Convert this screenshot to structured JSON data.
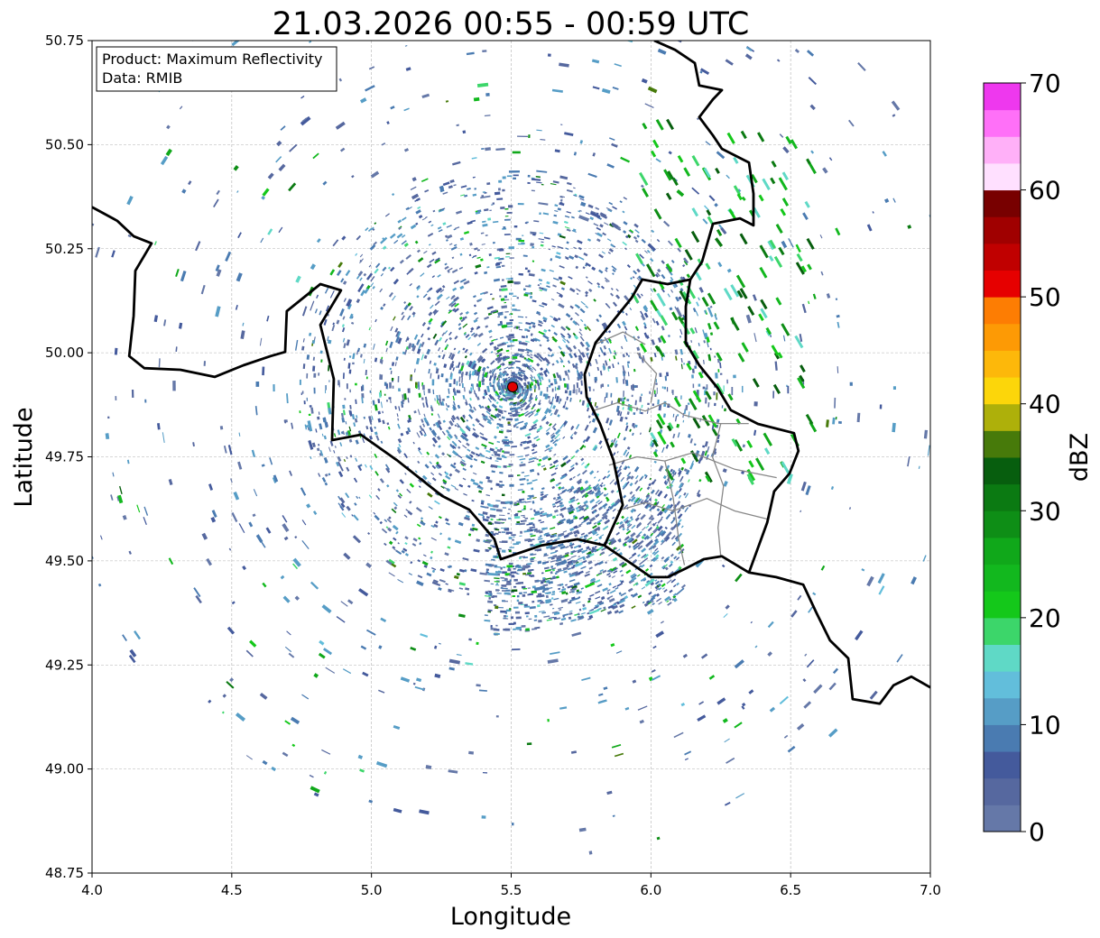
{
  "chart_data": {
    "type": "map",
    "title": "21.03.2026 00:55 - 00:59 UTC",
    "xlabel": "Longitude",
    "ylabel": "Latitude",
    "xlim": [
      4.0,
      7.0
    ],
    "ylim": [
      48.75,
      50.75
    ],
    "xticks": [
      4.0,
      4.5,
      5.0,
      5.5,
      6.0,
      6.5,
      7.0
    ],
    "xtick_labels": [
      "4.0",
      "4.5",
      "5.0",
      "5.5",
      "6.0",
      "6.5",
      "7.0"
    ],
    "yticks": [
      48.75,
      49.0,
      49.25,
      49.5,
      49.75,
      50.0,
      50.25,
      50.5,
      50.75
    ],
    "ytick_labels": [
      "48.75",
      "49.00",
      "49.25",
      "49.50",
      "49.75",
      "50.00",
      "50.25",
      "50.50",
      "50.75"
    ],
    "grid": true,
    "info_box": {
      "product": "Product: Maximum Reflectivity",
      "source": "Data: RMIB"
    },
    "radar_site": {
      "lon": 5.505,
      "lat": 49.918,
      "color": "#e00000"
    },
    "colorbar": {
      "label": "dBZ",
      "range": [
        0,
        70
      ],
      "step": 2.5,
      "ticks": [
        0,
        10,
        20,
        30,
        40,
        50,
        60,
        70
      ],
      "tick_labels": [
        "0",
        "10",
        "20",
        "30",
        "40",
        "50",
        "60",
        "70"
      ],
      "colors": [
        "#6578a8",
        "#56689f",
        "#445a9c",
        "#4a7bb1",
        "#569dc6",
        "#62bedb",
        "#5fd9c6",
        "#3cd66a",
        "#14c81a",
        "#12b81e",
        "#10a81a",
        "#0e8e16",
        "#0b7a12",
        "#075e0e",
        "#477a0a",
        "#aeb00a",
        "#fcd60a",
        "#fdb80a",
        "#fd9a05",
        "#fd7d03",
        "#e60000",
        "#c00000",
        "#a00000",
        "#780000",
        "#ffe0ff",
        "#ffb0f8",
        "#ff70f8",
        "#ee38ee"
      ]
    },
    "borders": {
      "national": [
        [
          [
            4.0,
            50.35
          ],
          [
            4.09,
            50.317
          ],
          [
            4.149,
            50.28
          ],
          [
            4.213,
            50.263
          ],
          [
            4.155,
            50.197
          ],
          [
            4.149,
            50.089
          ],
          [
            4.133,
            49.992
          ],
          [
            4.187,
            49.963
          ],
          [
            4.316,
            49.959
          ],
          [
            4.439,
            49.942
          ],
          [
            4.542,
            49.97
          ],
          [
            4.639,
            49.992
          ],
          [
            4.691,
            50.002
          ],
          [
            4.697,
            50.1
          ],
          [
            4.817,
            50.165
          ],
          [
            4.891,
            50.15
          ],
          [
            4.817,
            50.067
          ],
          [
            4.865,
            49.937
          ],
          [
            4.859,
            49.79
          ],
          [
            4.962,
            49.803
          ],
          [
            5.091,
            49.742
          ],
          [
            5.253,
            49.656
          ],
          [
            5.35,
            49.623
          ],
          [
            5.44,
            49.552
          ],
          [
            5.463,
            49.504
          ],
          [
            5.608,
            49.537
          ],
          [
            5.737,
            49.552
          ],
          [
            5.834,
            49.537
          ],
          [
            5.931,
            49.493
          ],
          [
            6.0,
            49.461
          ],
          [
            6.06,
            49.461
          ],
          [
            6.125,
            49.482
          ],
          [
            6.189,
            49.504
          ],
          [
            6.254,
            49.511
          ],
          [
            6.351,
            49.472
          ],
          [
            6.448,
            49.461
          ],
          [
            6.545,
            49.443
          ],
          [
            6.593,
            49.374
          ],
          [
            6.641,
            49.309
          ],
          [
            6.706,
            49.266
          ],
          [
            6.722,
            49.168
          ],
          [
            6.819,
            49.157
          ],
          [
            6.868,
            49.201
          ],
          [
            6.932,
            49.222
          ],
          [
            7.0,
            49.196
          ]
        ],
        [
          [
            5.834,
            49.537
          ],
          [
            5.899,
            49.634
          ],
          [
            5.866,
            49.742
          ],
          [
            5.818,
            49.829
          ],
          [
            5.77,
            49.894
          ],
          [
            5.763,
            49.948
          ],
          [
            5.802,
            50.024
          ],
          [
            5.931,
            50.132
          ],
          [
            5.969,
            50.176
          ],
          [
            6.06,
            50.165
          ],
          [
            6.141,
            50.176
          ],
          [
            6.183,
            50.219
          ],
          [
            6.222,
            50.31
          ],
          [
            6.319,
            50.323
          ],
          [
            6.367,
            50.306
          ],
          [
            6.367,
            50.382
          ],
          [
            6.351,
            50.457
          ],
          [
            6.254,
            50.49
          ],
          [
            6.222,
            50.522
          ],
          [
            6.173,
            50.566
          ],
          [
            6.222,
            50.609
          ],
          [
            6.254,
            50.631
          ],
          [
            6.173,
            50.642
          ],
          [
            6.157,
            50.696
          ],
          [
            6.086,
            50.728
          ],
          [
            6.012,
            50.75
          ]
        ],
        [
          [
            6.141,
            50.176
          ],
          [
            6.125,
            50.111
          ],
          [
            6.125,
            50.024
          ],
          [
            6.173,
            49.97
          ],
          [
            6.238,
            49.916
          ],
          [
            6.286,
            49.862
          ],
          [
            6.383,
            49.829
          ],
          [
            6.512,
            49.807
          ],
          [
            6.528,
            49.764
          ],
          [
            6.496,
            49.71
          ],
          [
            6.441,
            49.667
          ],
          [
            6.416,
            49.592
          ],
          [
            6.351,
            49.472
          ]
        ]
      ],
      "regional": [
        [
          [
            5.79,
            49.86
          ],
          [
            5.88,
            49.88
          ],
          [
            5.98,
            49.86
          ],
          [
            6.05,
            49.88
          ],
          [
            6.12,
            49.85
          ],
          [
            6.24,
            49.83
          ],
          [
            6.35,
            49.83
          ]
        ],
        [
          [
            5.85,
            49.73
          ],
          [
            5.95,
            49.75
          ],
          [
            6.05,
            49.74
          ],
          [
            6.15,
            49.76
          ],
          [
            6.3,
            49.72
          ],
          [
            6.45,
            49.7
          ]
        ],
        [
          [
            5.88,
            49.62
          ],
          [
            5.98,
            49.64
          ],
          [
            6.08,
            49.62
          ],
          [
            6.2,
            49.65
          ],
          [
            6.3,
            49.62
          ],
          [
            6.42,
            49.6
          ]
        ],
        [
          [
            5.95,
            50.0
          ],
          [
            6.02,
            49.95
          ],
          [
            6.0,
            49.88
          ]
        ],
        [
          [
            6.05,
            49.74
          ],
          [
            6.08,
            49.65
          ],
          [
            6.1,
            49.55
          ],
          [
            6.12,
            49.49
          ]
        ],
        [
          [
            6.25,
            49.83
          ],
          [
            6.22,
            49.75
          ],
          [
            6.26,
            49.68
          ],
          [
            6.24,
            49.58
          ],
          [
            6.25,
            49.51
          ]
        ],
        [
          [
            5.8,
            50.02
          ],
          [
            5.9,
            50.05
          ],
          [
            5.98,
            50.02
          ]
        ]
      ]
    }
  }
}
